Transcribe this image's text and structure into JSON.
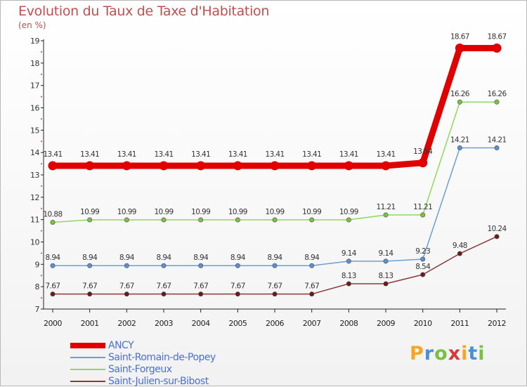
{
  "title": "Evolution du Taux de Taxe d'Habitation",
  "unit_label": "(en %)",
  "logo": {
    "text": "Proxiti",
    "letters": [
      "P",
      "r",
      "o",
      "x",
      "i",
      "t",
      "i"
    ],
    "colors": [
      "#f5a623",
      "#4a90d9",
      "#7ac143",
      "#d9383a",
      "#f5a623",
      "#4a90d9",
      "#7ac143"
    ]
  },
  "chart_data": {
    "type": "line",
    "title": "Evolution du Taux de Taxe d'Habitation",
    "ylabel": "(en %)",
    "xlabel": "",
    "categories": [
      "2000",
      "2001",
      "2002",
      "2003",
      "2004",
      "2005",
      "2006",
      "2007",
      "2008",
      "2009",
      "2010",
      "2011",
      "2012"
    ],
    "ylim": [
      7,
      19
    ],
    "yticks": [
      "7",
      "8",
      "9",
      "10",
      "11",
      "12",
      "13",
      "14",
      "15",
      "16",
      "17",
      "18",
      "19"
    ],
    "series": [
      {
        "name": "ANCY",
        "color": "#e00000",
        "marker": "#e00000",
        "values": [
          13.41,
          13.41,
          13.41,
          13.41,
          13.41,
          13.41,
          13.41,
          13.41,
          13.41,
          13.41,
          13.54,
          18.67,
          18.67
        ],
        "labels": [
          "13.41",
          "13.41",
          "13.41",
          "13.41",
          "13.41",
          "13.41",
          "13.41",
          "13.41",
          "13.41",
          "13.41",
          "13.54",
          "18.67",
          "18.67"
        ]
      },
      {
        "name": "Saint-Romain-de-Popey",
        "color": "#6c9fd0",
        "marker": "#5a8fd0",
        "values": [
          8.94,
          8.94,
          8.94,
          8.94,
          8.94,
          8.94,
          8.94,
          8.94,
          9.14,
          9.14,
          9.23,
          14.21,
          14.21
        ],
        "labels": [
          "8.94",
          "8.94",
          "8.94",
          "8.94",
          "8.94",
          "8.94",
          "8.94",
          "8.94",
          "9.14",
          "9.14",
          "9.23",
          "14.21",
          "14.21"
        ]
      },
      {
        "name": "Saint-Forgeux",
        "color": "#8fd860",
        "marker": "#7ac143",
        "values": [
          10.88,
          10.99,
          10.99,
          10.99,
          10.99,
          10.99,
          10.99,
          10.99,
          10.99,
          11.21,
          11.21,
          16.26,
          16.26
        ],
        "labels": [
          "10.88",
          "10.99",
          "10.99",
          "10.99",
          "10.99",
          "10.99",
          "10.99",
          "10.99",
          "10.99",
          "11.21",
          "11.21",
          "16.26",
          "16.26"
        ]
      },
      {
        "name": "Saint-Julien-sur-Bibost",
        "color": "#8b3a3a",
        "marker": "#6b1a1a",
        "values": [
          7.67,
          7.67,
          7.67,
          7.67,
          7.67,
          7.67,
          7.67,
          7.67,
          8.13,
          8.13,
          8.54,
          9.48,
          10.24
        ],
        "labels": [
          "7.67",
          "7.67",
          "7.67",
          "7.67",
          "7.67",
          "7.67",
          "7.67",
          "7.67",
          "8.13",
          "8.13",
          "8.54",
          "9.48",
          "10.24"
        ]
      }
    ],
    "grid": false,
    "legend_position": "bottom-left"
  }
}
